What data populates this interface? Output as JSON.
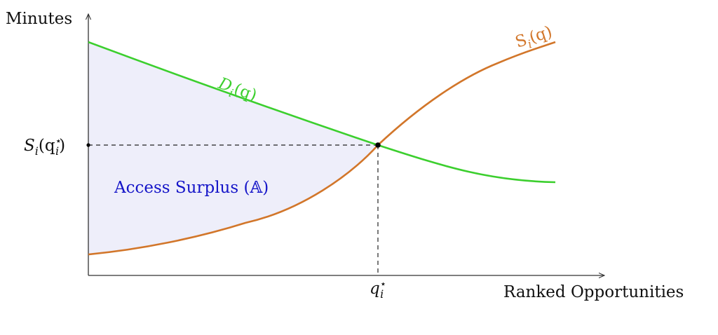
{
  "axes": {
    "y_label": "Minutes",
    "x_label": "Ranked Opportunities"
  },
  "curves": {
    "demand": {
      "label": "D",
      "subscript": "i",
      "argument": "(q)",
      "color": "#3ccf2e"
    },
    "supply": {
      "label": "S",
      "subscript": "i",
      "argument": "(q)",
      "color": "#d2762a"
    }
  },
  "equilibrium": {
    "y_tick_main": "S",
    "y_tick_sub": "i",
    "y_tick_open": "(q",
    "y_tick_star": "⋆",
    "y_tick_inner_sub": "i",
    "y_tick_close": ")",
    "x_tick_main": "q",
    "x_tick_star": "⋆",
    "x_tick_sub": "i"
  },
  "region": {
    "label": "Access Surplus (𝔸)",
    "fill_color": "#eeeefa",
    "text_color": "#1414c8"
  }
}
